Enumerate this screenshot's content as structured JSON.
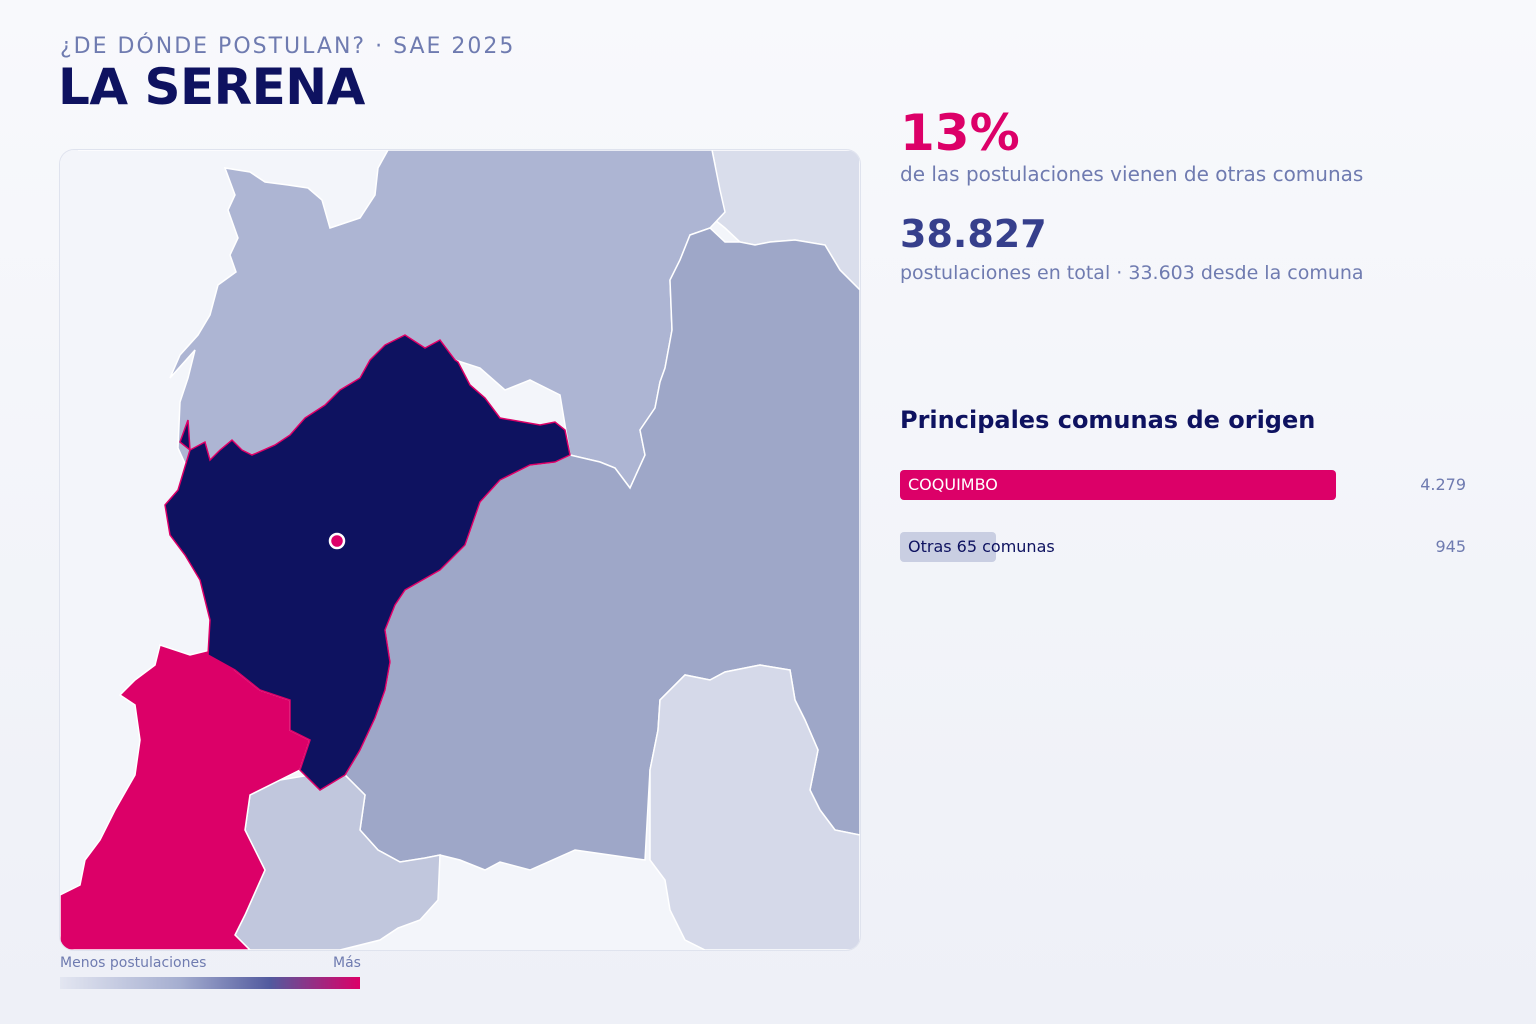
{
  "header": {
    "kicker": "¿DE DÓNDE POSTULAN? · SAE 2025",
    "title": "LA SERENA"
  },
  "stats": {
    "pct_value": "13%",
    "pct_text": "de las postulaciones vienen de otras comunas",
    "total_value": "38.827",
    "total_text": "postulaciones en total · 33.603 desde la comuna"
  },
  "breakdown": {
    "title": "Principales comunas de origen",
    "max_value": 4279,
    "items": [
      {
        "label": "COQUIMBO",
        "value": 4279,
        "value_text": "4.279",
        "color": "#dc0068",
        "text_color": "#ffffff"
      },
      {
        "label": "Otras 65 comunas",
        "value": 945,
        "value_text": "945",
        "color": "#c9cee2",
        "text_color": "#0e1260"
      }
    ]
  },
  "legend": {
    "min_label": "Menos postulaciones",
    "max_label": "Más"
  },
  "colors": {
    "highlight": "#dc0068",
    "selected_commune": "#0e1260",
    "accent_dark": "#363f8c"
  }
}
